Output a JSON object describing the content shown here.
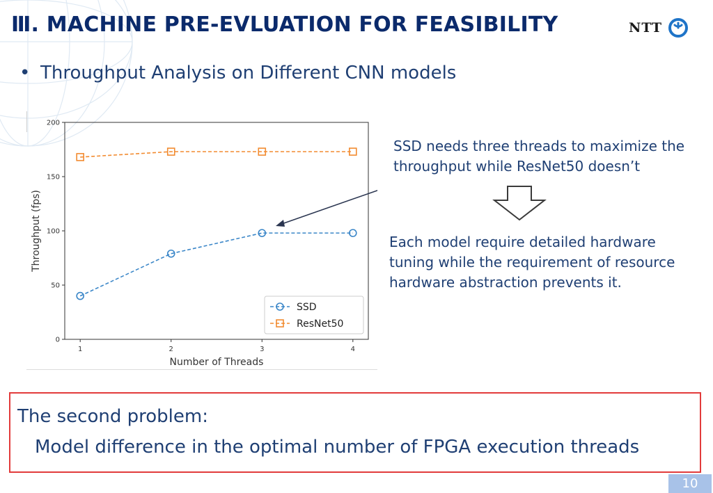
{
  "slide": {
    "title": "Ⅲ. MACHINE PRE-EVLUATION FOR FEASIBILITY",
    "logo_text": "NTT",
    "bullet": "Throughput Analysis on Different CNN models",
    "note_ssd": "SSD needs three threads to maximize the throughput while ResNet50 doesn’t",
    "note_tuning": "Each model require detailed hardware tuning while the requirement of resource hardware abstraction prevents it.",
    "problem_title": "The second problem:",
    "problem_detail": "Model difference in the optimal number of FPGA execution threads",
    "page_number": "10",
    "colors": {
      "title": "#0b2a6b",
      "text": "#1f3f73",
      "box_border": "#e23b3b",
      "logo_blue": "#1f74c8",
      "page_badge": "#a8c2e8"
    }
  },
  "chart_data": {
    "type": "line",
    "x": [
      1,
      2,
      3,
      4
    ],
    "xticks": [
      "1",
      "2",
      "3",
      "4"
    ],
    "yticks": [
      "0",
      "50",
      "100",
      "150",
      "200"
    ],
    "xlabel": "Number of Threads",
    "ylabel": "Throughput (fps)",
    "ylim": [
      0,
      200
    ],
    "grid": false,
    "legend_position": "bottom-right",
    "series": [
      {
        "name": "SSD",
        "values": [
          40,
          79,
          98,
          98
        ],
        "color": "#3a86c8",
        "marker": "circle"
      },
      {
        "name": "ResNet50",
        "values": [
          168,
          173,
          173,
          173
        ],
        "color": "#f28b30",
        "marker": "square"
      }
    ]
  }
}
